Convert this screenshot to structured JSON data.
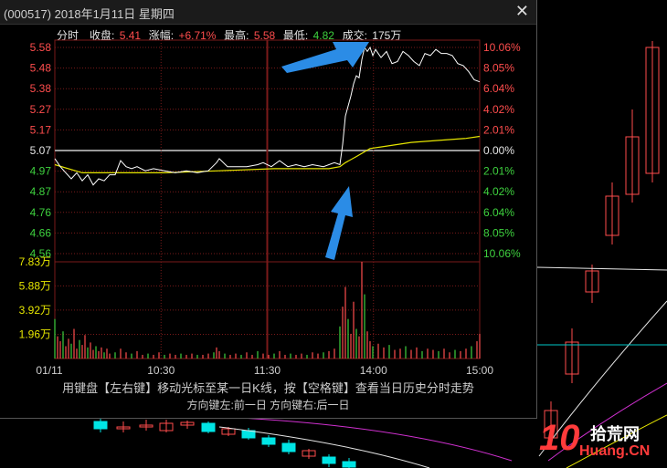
{
  "window": {
    "title": "(000517) 2018年1月11日 星期四",
    "close_icon": "close-icon"
  },
  "info": {
    "mode": "分时",
    "close_label": "收盘:",
    "close_value": "5.41",
    "change_label": "涨幅:",
    "change_value": "+6.71%",
    "high_label": "最高:",
    "high_value": "5.58",
    "low_label": "最低:",
    "low_value": "4.82",
    "volume_label": "成交:",
    "volume_value": "175万"
  },
  "hint": {
    "line1": "用键盘【左右键】移动光标至某一日K线，按【空格键】查看当日历史分时走势",
    "line2": "方向键左:前一日    方向键右:后一日"
  },
  "watermark": {
    "num": "10",
    "cn": "拾荒网",
    "en": "Huang.CN"
  },
  "colors": {
    "up": "#ff4d4d",
    "down": "#3ed13e",
    "price_line": "#ffffff",
    "avg_line": "#e6e600",
    "arrow": "#2b8ce6",
    "grid": "#7a1a1a"
  },
  "chart_data": {
    "type": "line",
    "price_axis": {
      "ticks": [
        "5.58",
        "5.48",
        "5.38",
        "5.27",
        "5.17",
        "5.07",
        "4.97",
        "4.87",
        "4.76",
        "4.66",
        "4.56"
      ],
      "ylim": [
        4.56,
        5.58
      ],
      "pre_close": 5.07
    },
    "pct_axis": {
      "ticks": [
        "10.06%",
        "8.05%",
        "6.04%",
        "4.02%",
        "2.01%",
        "0.00%",
        "2.01%",
        "4.02%",
        "6.04%",
        "8.05%",
        "10.06%"
      ]
    },
    "volume_axis": {
      "ticks": [
        "7.83万",
        "5.88万",
        "3.92万",
        "1.96万"
      ],
      "ylim": [
        0,
        7.83
      ]
    },
    "x_ticks": [
      "01/11",
      "10:30",
      "11:30",
      "14:00",
      "15:00"
    ],
    "price_series": [
      [
        0,
        5.03
      ],
      [
        4,
        4.99
      ],
      [
        8,
        4.96
      ],
      [
        12,
        4.93
      ],
      [
        16,
        4.96
      ],
      [
        20,
        4.92
      ],
      [
        24,
        4.95
      ],
      [
        28,
        4.9
      ],
      [
        32,
        4.93
      ],
      [
        36,
        4.92
      ],
      [
        40,
        4.95
      ],
      [
        44,
        4.95
      ],
      [
        48,
        5.02
      ],
      [
        52,
        4.99
      ],
      [
        56,
        4.98
      ],
      [
        60,
        4.99
      ],
      [
        66,
        4.97
      ],
      [
        72,
        4.98
      ],
      [
        80,
        4.97
      ],
      [
        88,
        4.96
      ],
      [
        96,
        4.97
      ],
      [
        104,
        4.96
      ],
      [
        112,
        4.97
      ],
      [
        118,
        5.01
      ],
      [
        120,
        5.03
      ],
      [
        126,
        4.99
      ],
      [
        132,
        4.99
      ],
      [
        140,
        4.99
      ],
      [
        148,
        5.0
      ],
      [
        152,
        5.01
      ],
      [
        158,
        4.99
      ],
      [
        164,
        5.02
      ],
      [
        170,
        4.99
      ],
      [
        176,
        5.0
      ],
      [
        182,
        4.99
      ],
      [
        188,
        5.0
      ],
      [
        196,
        4.99
      ],
      [
        204,
        5.01
      ],
      [
        208,
        5.0
      ],
      [
        210,
        5.1
      ],
      [
        212,
        5.24
      ],
      [
        214,
        5.29
      ],
      [
        216,
        5.34
      ],
      [
        218,
        5.4
      ],
      [
        220,
        5.44
      ],
      [
        222,
        5.43
      ],
      [
        224,
        5.52
      ],
      [
        226,
        5.58
      ],
      [
        228,
        5.56
      ],
      [
        230,
        5.58
      ],
      [
        232,
        5.54
      ],
      [
        234,
        5.57
      ],
      [
        238,
        5.53
      ],
      [
        242,
        5.56
      ],
      [
        246,
        5.5
      ],
      [
        250,
        5.51
      ],
      [
        254,
        5.56
      ],
      [
        258,
        5.54
      ],
      [
        262,
        5.51
      ],
      [
        266,
        5.49
      ],
      [
        270,
        5.55
      ],
      [
        274,
        5.54
      ],
      [
        278,
        5.57
      ],
      [
        282,
        5.55
      ],
      [
        286,
        5.55
      ],
      [
        290,
        5.54
      ],
      [
        294,
        5.5
      ],
      [
        298,
        5.49
      ],
      [
        302,
        5.46
      ],
      [
        306,
        5.42
      ],
      [
        310,
        5.41
      ]
    ],
    "avg_series": [
      [
        0,
        5.0
      ],
      [
        20,
        4.96
      ],
      [
        40,
        4.96
      ],
      [
        80,
        4.96
      ],
      [
        120,
        4.97
      ],
      [
        160,
        4.98
      ],
      [
        200,
        4.98
      ],
      [
        208,
        4.99
      ],
      [
        212,
        5.01
      ],
      [
        220,
        5.04
      ],
      [
        230,
        5.08
      ],
      [
        240,
        5.09
      ],
      [
        260,
        5.11
      ],
      [
        280,
        5.12
      ],
      [
        300,
        5.13
      ],
      [
        310,
        5.14
      ]
    ],
    "volume_series": [
      [
        0,
        3.2
      ],
      [
        2,
        1.8
      ],
      [
        4,
        1.4
      ],
      [
        6,
        2.2
      ],
      [
        8,
        1.0
      ],
      [
        10,
        1.6
      ],
      [
        12,
        1.2
      ],
      [
        14,
        2.4
      ],
      [
        16,
        0.8
      ],
      [
        18,
        1.5
      ],
      [
        20,
        1.1
      ],
      [
        22,
        1.9
      ],
      [
        24,
        0.9
      ],
      [
        26,
        1.3
      ],
      [
        28,
        0.7
      ],
      [
        30,
        1.0
      ],
      [
        32,
        0.6
      ],
      [
        34,
        0.9
      ],
      [
        36,
        0.5
      ],
      [
        38,
        0.8
      ],
      [
        40,
        0.4
      ],
      [
        44,
        0.5
      ],
      [
        48,
        0.8
      ],
      [
        52,
        0.5
      ],
      [
        56,
        0.4
      ],
      [
        60,
        0.6
      ],
      [
        64,
        0.3
      ],
      [
        68,
        0.4
      ],
      [
        72,
        0.3
      ],
      [
        76,
        0.5
      ],
      [
        80,
        0.3
      ],
      [
        84,
        0.4
      ],
      [
        88,
        0.3
      ],
      [
        92,
        0.4
      ],
      [
        96,
        0.3
      ],
      [
        100,
        0.4
      ],
      [
        104,
        0.3
      ],
      [
        108,
        0.3
      ],
      [
        112,
        0.4
      ],
      [
        116,
        0.5
      ],
      [
        118,
        0.9
      ],
      [
        120,
        0.6
      ],
      [
        124,
        0.4
      ],
      [
        128,
        0.3
      ],
      [
        132,
        0.4
      ],
      [
        136,
        0.3
      ],
      [
        140,
        0.5
      ],
      [
        144,
        0.3
      ],
      [
        148,
        0.6
      ],
      [
        152,
        0.4
      ],
      [
        156,
        0.3
      ],
      [
        160,
        0.4
      ],
      [
        164,
        0.6
      ],
      [
        168,
        0.3
      ],
      [
        172,
        0.4
      ],
      [
        176,
        0.3
      ],
      [
        180,
        0.4
      ],
      [
        184,
        0.3
      ],
      [
        188,
        0.5
      ],
      [
        192,
        0.4
      ],
      [
        196,
        0.5
      ],
      [
        200,
        0.6
      ],
      [
        204,
        0.8
      ],
      [
        208,
        2.6
      ],
      [
        210,
        4.2
      ],
      [
        212,
        5.8
      ],
      [
        214,
        3.2
      ],
      [
        216,
        2.0
      ],
      [
        218,
        4.6
      ],
      [
        220,
        2.4
      ],
      [
        222,
        1.8
      ],
      [
        224,
        7.83
      ],
      [
        226,
        5.2
      ],
      [
        228,
        2.2
      ],
      [
        230,
        1.4
      ],
      [
        232,
        1.0
      ],
      [
        236,
        1.2
      ],
      [
        240,
        0.9
      ],
      [
        244,
        1.1
      ],
      [
        248,
        0.7
      ],
      [
        252,
        0.8
      ],
      [
        256,
        1.0
      ],
      [
        260,
        0.7
      ],
      [
        264,
        0.9
      ],
      [
        268,
        0.6
      ],
      [
        272,
        0.8
      ],
      [
        276,
        0.7
      ],
      [
        280,
        0.6
      ],
      [
        284,
        0.8
      ],
      [
        288,
        0.5
      ],
      [
        292,
        0.7
      ],
      [
        296,
        0.6
      ],
      [
        300,
        0.8
      ],
      [
        304,
        1.0
      ],
      [
        308,
        1.4
      ],
      [
        310,
        2.0
      ]
    ],
    "annotations": [
      "arrow pointing to intraday high",
      "arrow pointing to breakout from average line"
    ]
  }
}
